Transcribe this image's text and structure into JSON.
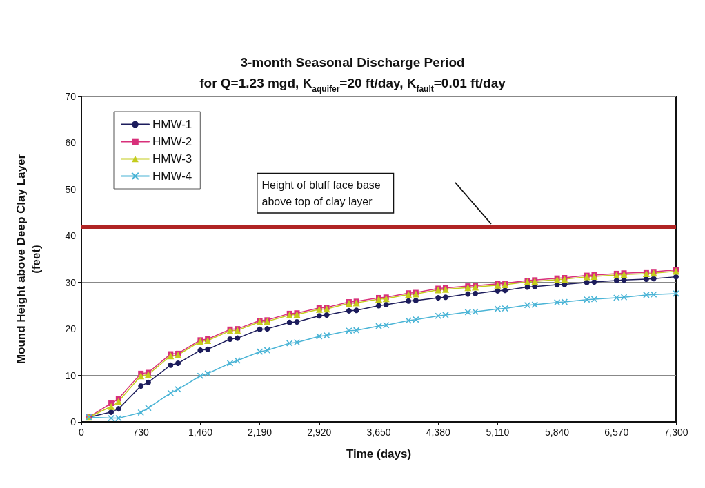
{
  "chart_data": {
    "type": "line",
    "title": "3-month Seasonal Discharge Period",
    "subtitle": "for Q=1.23 mgd, K$_{aquifer}$=20 ft/day, K$_{fault}$=0.01 ft/day",
    "xlabel": "Time (days)",
    "ylabel": "Mound Height above Deep Clay Layer\n(feet)",
    "x": [
      91,
      365,
      456,
      730,
      821,
      1095,
      1186,
      1460,
      1551,
      1825,
      1916,
      2190,
      2281,
      2555,
      2646,
      2920,
      3011,
      3285,
      3376,
      3650,
      3741,
      4015,
      4106,
      4380,
      4471,
      4745,
      4836,
      5110,
      5201,
      5475,
      5566,
      5840,
      5931,
      6205,
      6296,
      6570,
      6661,
      6935,
      7026,
      7300
    ],
    "series": [
      {
        "name": "HMW-1",
        "color": "#1c1c5c",
        "marker": "circle",
        "values": [
          1.0,
          2.1,
          2.8,
          7.7,
          8.5,
          12.2,
          12.6,
          15.4,
          15.6,
          17.8,
          18.0,
          19.9,
          20.0,
          21.4,
          21.5,
          22.8,
          23.0,
          23.9,
          24.0,
          25.0,
          25.2,
          26.0,
          26.1,
          26.7,
          26.8,
          27.5,
          27.6,
          28.2,
          28.3,
          29.0,
          29.1,
          29.5,
          29.6,
          30.0,
          30.1,
          30.4,
          30.5,
          30.7,
          30.8,
          31.2
        ]
      },
      {
        "name": "HMW-2",
        "color": "#d8307a",
        "marker": "square",
        "values": [
          1.0,
          4.0,
          5.0,
          10.4,
          10.6,
          14.6,
          14.7,
          17.6,
          17.8,
          19.9,
          20.0,
          21.8,
          21.9,
          23.3,
          23.4,
          24.5,
          24.6,
          25.8,
          25.9,
          26.7,
          26.8,
          27.7,
          27.8,
          28.7,
          28.8,
          29.2,
          29.3,
          29.7,
          29.8,
          30.4,
          30.5,
          30.9,
          31.0,
          31.5,
          31.6,
          31.9,
          32.0,
          32.2,
          32.3,
          32.7
        ]
      },
      {
        "name": "HMW-3",
        "color": "#c4cc1c",
        "marker": "triangle",
        "values": [
          1.0,
          3.3,
          4.4,
          9.9,
          10.2,
          14.2,
          14.4,
          17.3,
          17.5,
          19.6,
          19.7,
          21.5,
          21.6,
          23.0,
          23.1,
          24.2,
          24.3,
          25.5,
          25.6,
          26.4,
          26.5,
          27.4,
          27.5,
          28.4,
          28.5,
          28.9,
          29.0,
          29.4,
          29.5,
          30.1,
          30.2,
          30.6,
          30.7,
          31.2,
          31.3,
          31.6,
          31.7,
          31.9,
          32.0,
          32.4
        ]
      },
      {
        "name": "HMW-4",
        "color": "#4ab4d6",
        "marker": "cross",
        "values": [
          1.0,
          0.8,
          0.8,
          2.0,
          3.0,
          6.2,
          7.0,
          9.9,
          10.4,
          12.6,
          13.2,
          15.1,
          15.4,
          16.9,
          17.1,
          18.4,
          18.6,
          19.6,
          19.7,
          20.6,
          20.8,
          21.8,
          22.0,
          22.8,
          23.0,
          23.6,
          23.7,
          24.3,
          24.4,
          25.1,
          25.2,
          25.7,
          25.8,
          26.3,
          26.4,
          26.7,
          26.8,
          27.3,
          27.4,
          27.6
        ]
      }
    ],
    "xlim": [
      0,
      7300
    ],
    "xticks": [
      0,
      730,
      {
        "value": 1460,
        "label": "1,460"
      },
      {
        "value": 2190,
        "label": "2,190"
      },
      {
        "value": 2920,
        "label": "2,920"
      },
      {
        "value": 3650,
        "label": "3,650"
      },
      {
        "value": 4380,
        "label": "4,380"
      },
      {
        "value": 5110,
        "label": "5,110"
      },
      {
        "value": 5840,
        "label": "5,840"
      },
      {
        "value": 6570,
        "label": "6,570"
      },
      {
        "value": 7300,
        "label": "7,300"
      }
    ],
    "ylim": [
      0,
      70
    ],
    "yticks": [
      0,
      10,
      20,
      30,
      40,
      50,
      60,
      70
    ],
    "ref_lines": [
      {
        "axis": "y",
        "value": 42,
        "label": "Height of bluff face base\nabove top of clay layer",
        "color": "#b02424"
      }
    ],
    "grid": "y",
    "legend": "top left",
    "line_style": "solid"
  }
}
